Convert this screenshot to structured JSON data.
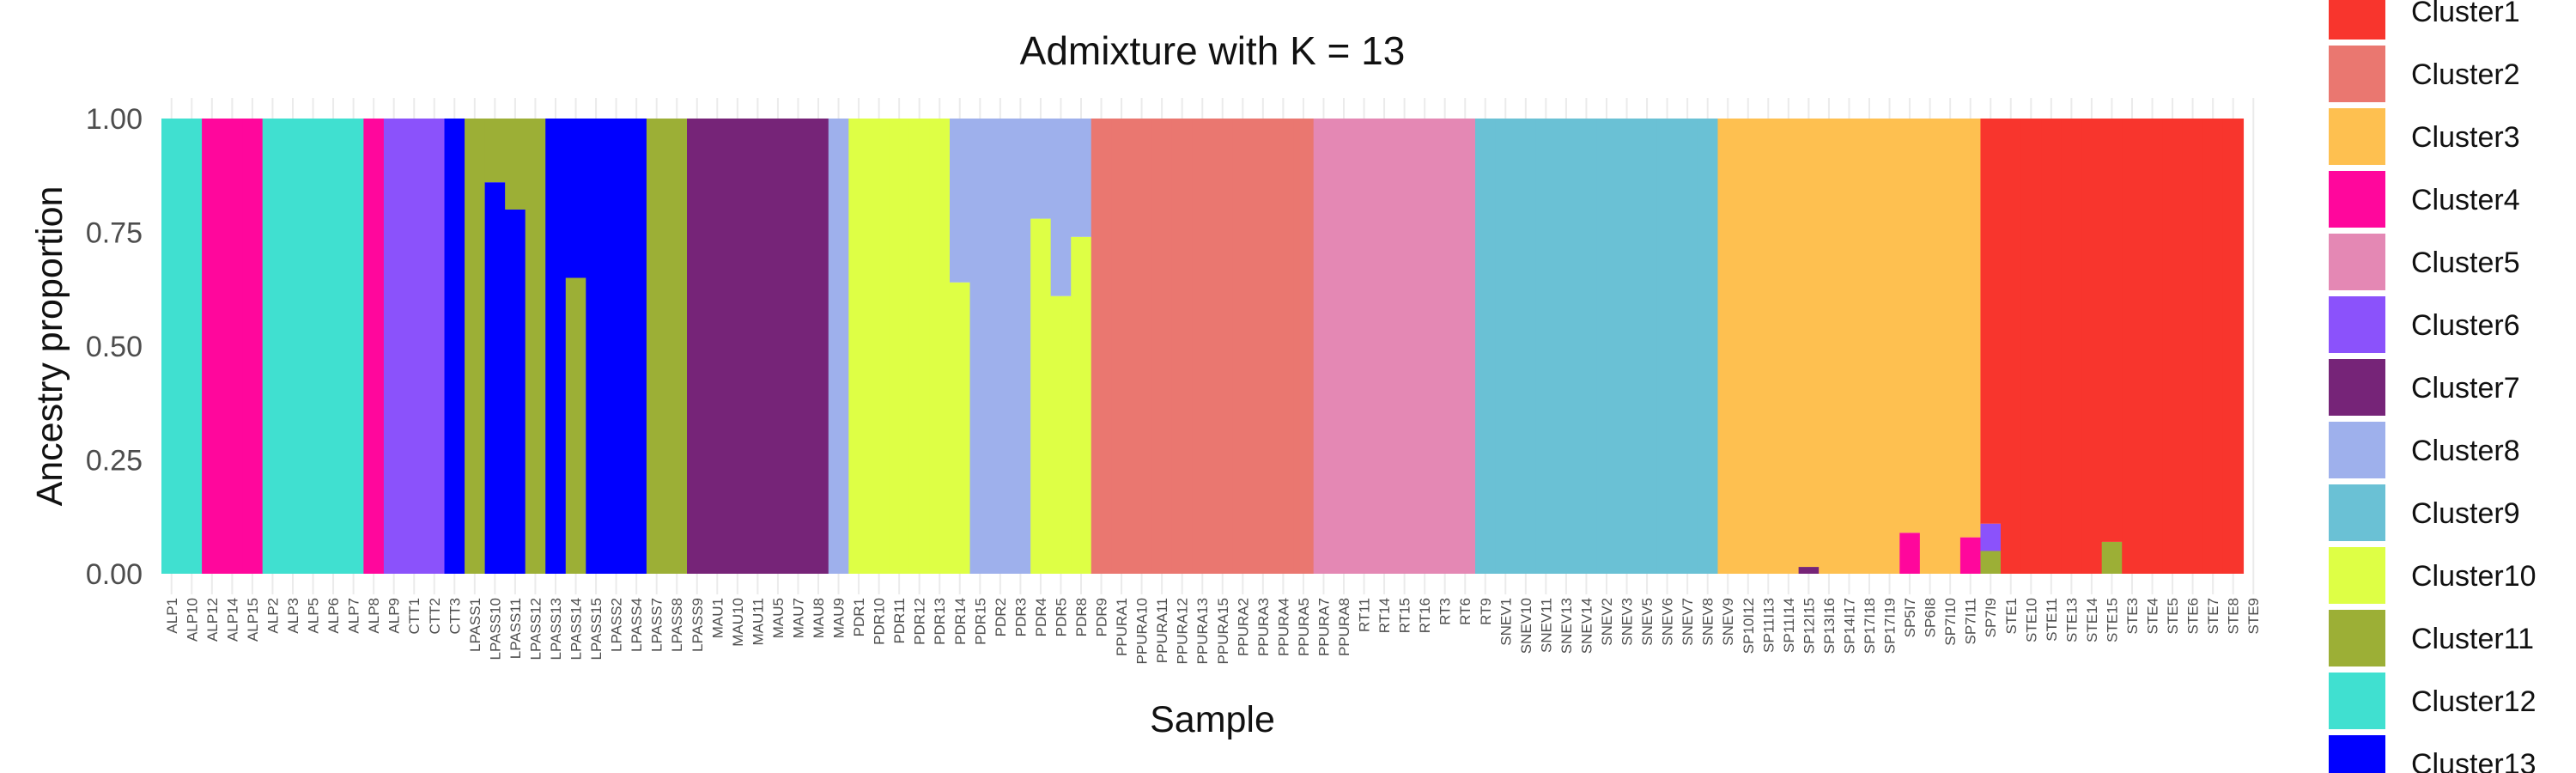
{
  "chart_data": {
    "type": "bar",
    "stacked": true,
    "title": "Admixture with K = 13",
    "xlabel": "Sample",
    "ylabel": "Ancestry proportion",
    "ylim": [
      0,
      1
    ],
    "yticks": [
      "0.00",
      "0.25",
      "0.50",
      "0.75",
      "1.00"
    ],
    "grid": true,
    "legend_position": "right",
    "series": [
      {
        "name": "Cluster1",
        "color": "#F8352D"
      },
      {
        "name": "Cluster2",
        "color": "#EA7770"
      },
      {
        "name": "Cluster3",
        "color": "#FEC050"
      },
      {
        "name": "Cluster4",
        "color": "#FF079C"
      },
      {
        "name": "Cluster5",
        "color": "#E488B4"
      },
      {
        "name": "Cluster6",
        "color": "#8B52FB"
      },
      {
        "name": "Cluster7",
        "color": "#762478"
      },
      {
        "name": "Cluster8",
        "color": "#9EB0EC"
      },
      {
        "name": "Cluster9",
        "color": "#6AC1D5"
      },
      {
        "name": "Cluster10",
        "color": "#DEFF45"
      },
      {
        "name": "Cluster11",
        "color": "#9CAF36"
      },
      {
        "name": "Cluster12",
        "color": "#40E0D0"
      },
      {
        "name": "Cluster13",
        "color": "#0000FF"
      }
    ],
    "categories": [
      "ALP1",
      "ALP10",
      "ALP12",
      "ALP14",
      "ALP15",
      "ALP2",
      "ALP3",
      "ALP5",
      "ALP6",
      "ALP7",
      "ALP8",
      "ALP9",
      "CTT1",
      "CTT2",
      "CTT3",
      "LPASS1",
      "LPASS10",
      "LPASS11",
      "LPASS12",
      "LPASS13",
      "LPASS14",
      "LPASS15",
      "LPASS2",
      "LPASS4",
      "LPASS7",
      "LPASS8",
      "LPASS9",
      "MAU1",
      "MAU10",
      "MAU11",
      "MAU5",
      "MAU7",
      "MAU8",
      "MAU9",
      "PDR1",
      "PDR10",
      "PDR11",
      "PDR12",
      "PDR13",
      "PDR14",
      "PDR15",
      "PDR2",
      "PDR3",
      "PDR4",
      "PDR5",
      "PDR8",
      "PDR9",
      "PPURA1",
      "PPURA10",
      "PPURA11",
      "PPURA12",
      "PPURA13",
      "PPURA15",
      "PPURA2",
      "PPURA3",
      "PPURA4",
      "PPURA5",
      "PPURA7",
      "PPURA8",
      "RT11",
      "RT14",
      "RT15",
      "RT16",
      "RT3",
      "RT6",
      "RT9",
      "SNEV1",
      "SNEV10",
      "SNEV11",
      "SNEV13",
      "SNEV14",
      "SNEV2",
      "SNEV3",
      "SNEV5",
      "SNEV6",
      "SNEV7",
      "SNEV8",
      "SNEV9",
      "SP10I12",
      "SP11I13",
      "SP11I14",
      "SP12I15",
      "SP13I16",
      "SP14I17",
      "SP17I18",
      "SP17I19",
      "SP5I7",
      "SP6I8",
      "SP7I10",
      "SP7I11",
      "SP7I9",
      "STE1",
      "STE10",
      "STE11",
      "STE13",
      "STE14",
      "STE15",
      "STE3",
      "STE4",
      "STE5",
      "STE6",
      "STE7",
      "STE8",
      "STE9"
    ],
    "proportions": [
      [
        [
          12,
          1
        ]
      ],
      [
        [
          12,
          1
        ]
      ],
      [
        [
          4,
          1
        ]
      ],
      [
        [
          4,
          1
        ]
      ],
      [
        [
          4,
          1
        ]
      ],
      [
        [
          12,
          1
        ]
      ],
      [
        [
          12,
          1
        ]
      ],
      [
        [
          12,
          1
        ]
      ],
      [
        [
          12,
          1
        ]
      ],
      [
        [
          12,
          1
        ]
      ],
      [
        [
          4,
          1
        ]
      ],
      [
        [
          6,
          1
        ]
      ],
      [
        [
          6,
          1
        ]
      ],
      [
        [
          6,
          1
        ]
      ],
      [
        [
          13,
          1
        ]
      ],
      [
        [
          11,
          1
        ]
      ],
      [
        [
          13,
          0.86
        ],
        [
          11,
          0.14
        ]
      ],
      [
        [
          13,
          0.8
        ],
        [
          11,
          0.2
        ]
      ],
      [
        [
          11,
          1
        ]
      ],
      [
        [
          13,
          1
        ]
      ],
      [
        [
          11,
          0.65
        ],
        [
          13,
          0.35
        ]
      ],
      [
        [
          13,
          1
        ]
      ],
      [
        [
          13,
          1
        ]
      ],
      [
        [
          13,
          1
        ]
      ],
      [
        [
          11,
          1
        ]
      ],
      [
        [
          11,
          1
        ]
      ],
      [
        [
          7,
          1
        ]
      ],
      [
        [
          7,
          1
        ]
      ],
      [
        [
          7,
          1
        ]
      ],
      [
        [
          7,
          1
        ]
      ],
      [
        [
          7,
          1
        ]
      ],
      [
        [
          7,
          1
        ]
      ],
      [
        [
          7,
          1
        ]
      ],
      [
        [
          8,
          1
        ]
      ],
      [
        [
          10,
          1
        ]
      ],
      [
        [
          10,
          1
        ]
      ],
      [
        [
          10,
          1
        ]
      ],
      [
        [
          10,
          1
        ]
      ],
      [
        [
          10,
          1
        ]
      ],
      [
        [
          10,
          0.64
        ],
        [
          8,
          0.36
        ]
      ],
      [
        [
          8,
          1
        ]
      ],
      [
        [
          8,
          1
        ]
      ],
      [
        [
          8,
          1
        ]
      ],
      [
        [
          10,
          0.78
        ],
        [
          8,
          0.22
        ]
      ],
      [
        [
          10,
          0.61
        ],
        [
          8,
          0.39
        ]
      ],
      [
        [
          10,
          0.74
        ],
        [
          8,
          0.26
        ]
      ],
      [
        [
          2,
          1
        ]
      ],
      [
        [
          2,
          1
        ]
      ],
      [
        [
          2,
          1
        ]
      ],
      [
        [
          2,
          1
        ]
      ],
      [
        [
          2,
          1
        ]
      ],
      [
        [
          2,
          1
        ]
      ],
      [
        [
          2,
          1
        ]
      ],
      [
        [
          2,
          1
        ]
      ],
      [
        [
          2,
          1
        ]
      ],
      [
        [
          2,
          1
        ]
      ],
      [
        [
          2,
          1
        ]
      ],
      [
        [
          5,
          1
        ]
      ],
      [
        [
          5,
          1
        ]
      ],
      [
        [
          5,
          1
        ]
      ],
      [
        [
          5,
          1
        ]
      ],
      [
        [
          5,
          1
        ]
      ],
      [
        [
          5,
          1
        ]
      ],
      [
        [
          5,
          1
        ]
      ],
      [
        [
          5,
          1
        ]
      ],
      [
        [
          9,
          1
        ]
      ],
      [
        [
          9,
          1
        ]
      ],
      [
        [
          9,
          1
        ]
      ],
      [
        [
          9,
          1
        ]
      ],
      [
        [
          9,
          1
        ]
      ],
      [
        [
          9,
          1
        ]
      ],
      [
        [
          9,
          1
        ]
      ],
      [
        [
          9,
          1
        ]
      ],
      [
        [
          9,
          1
        ]
      ],
      [
        [
          9,
          1
        ]
      ],
      [
        [
          9,
          1
        ]
      ],
      [
        [
          9,
          1
        ]
      ],
      [
        [
          3,
          1
        ]
      ],
      [
        [
          3,
          1
        ]
      ],
      [
        [
          3,
          1
        ]
      ],
      [
        [
          3,
          1
        ]
      ],
      [
        [
          7,
          0.015
        ],
        [
          3,
          0.985
        ]
      ],
      [
        [
          3,
          1
        ]
      ],
      [
        [
          3,
          1
        ]
      ],
      [
        [
          3,
          1
        ]
      ],
      [
        [
          3,
          1
        ]
      ],
      [
        [
          4,
          0.09
        ],
        [
          3,
          0.91
        ]
      ],
      [
        [
          3,
          1
        ]
      ],
      [
        [
          3,
          1
        ]
      ],
      [
        [
          4,
          0.08
        ],
        [
          3,
          0.92
        ]
      ],
      [
        [
          11,
          0.05
        ],
        [
          6,
          0.06
        ],
        [
          1,
          0.89
        ]
      ],
      [
        [
          1,
          1
        ]
      ],
      [
        [
          1,
          1
        ]
      ],
      [
        [
          1,
          1
        ]
      ],
      [
        [
          1,
          1
        ]
      ],
      [
        [
          1,
          1
        ]
      ],
      [
        [
          11,
          0.07
        ],
        [
          1,
          0.93
        ]
      ],
      [
        [
          1,
          1
        ]
      ],
      [
        [
          1,
          1
        ]
      ],
      [
        [
          1,
          1
        ]
      ],
      [
        [
          1,
          1
        ]
      ],
      [
        [
          1,
          1
        ]
      ],
      [
        [
          1,
          1
        ]
      ]
    ]
  }
}
